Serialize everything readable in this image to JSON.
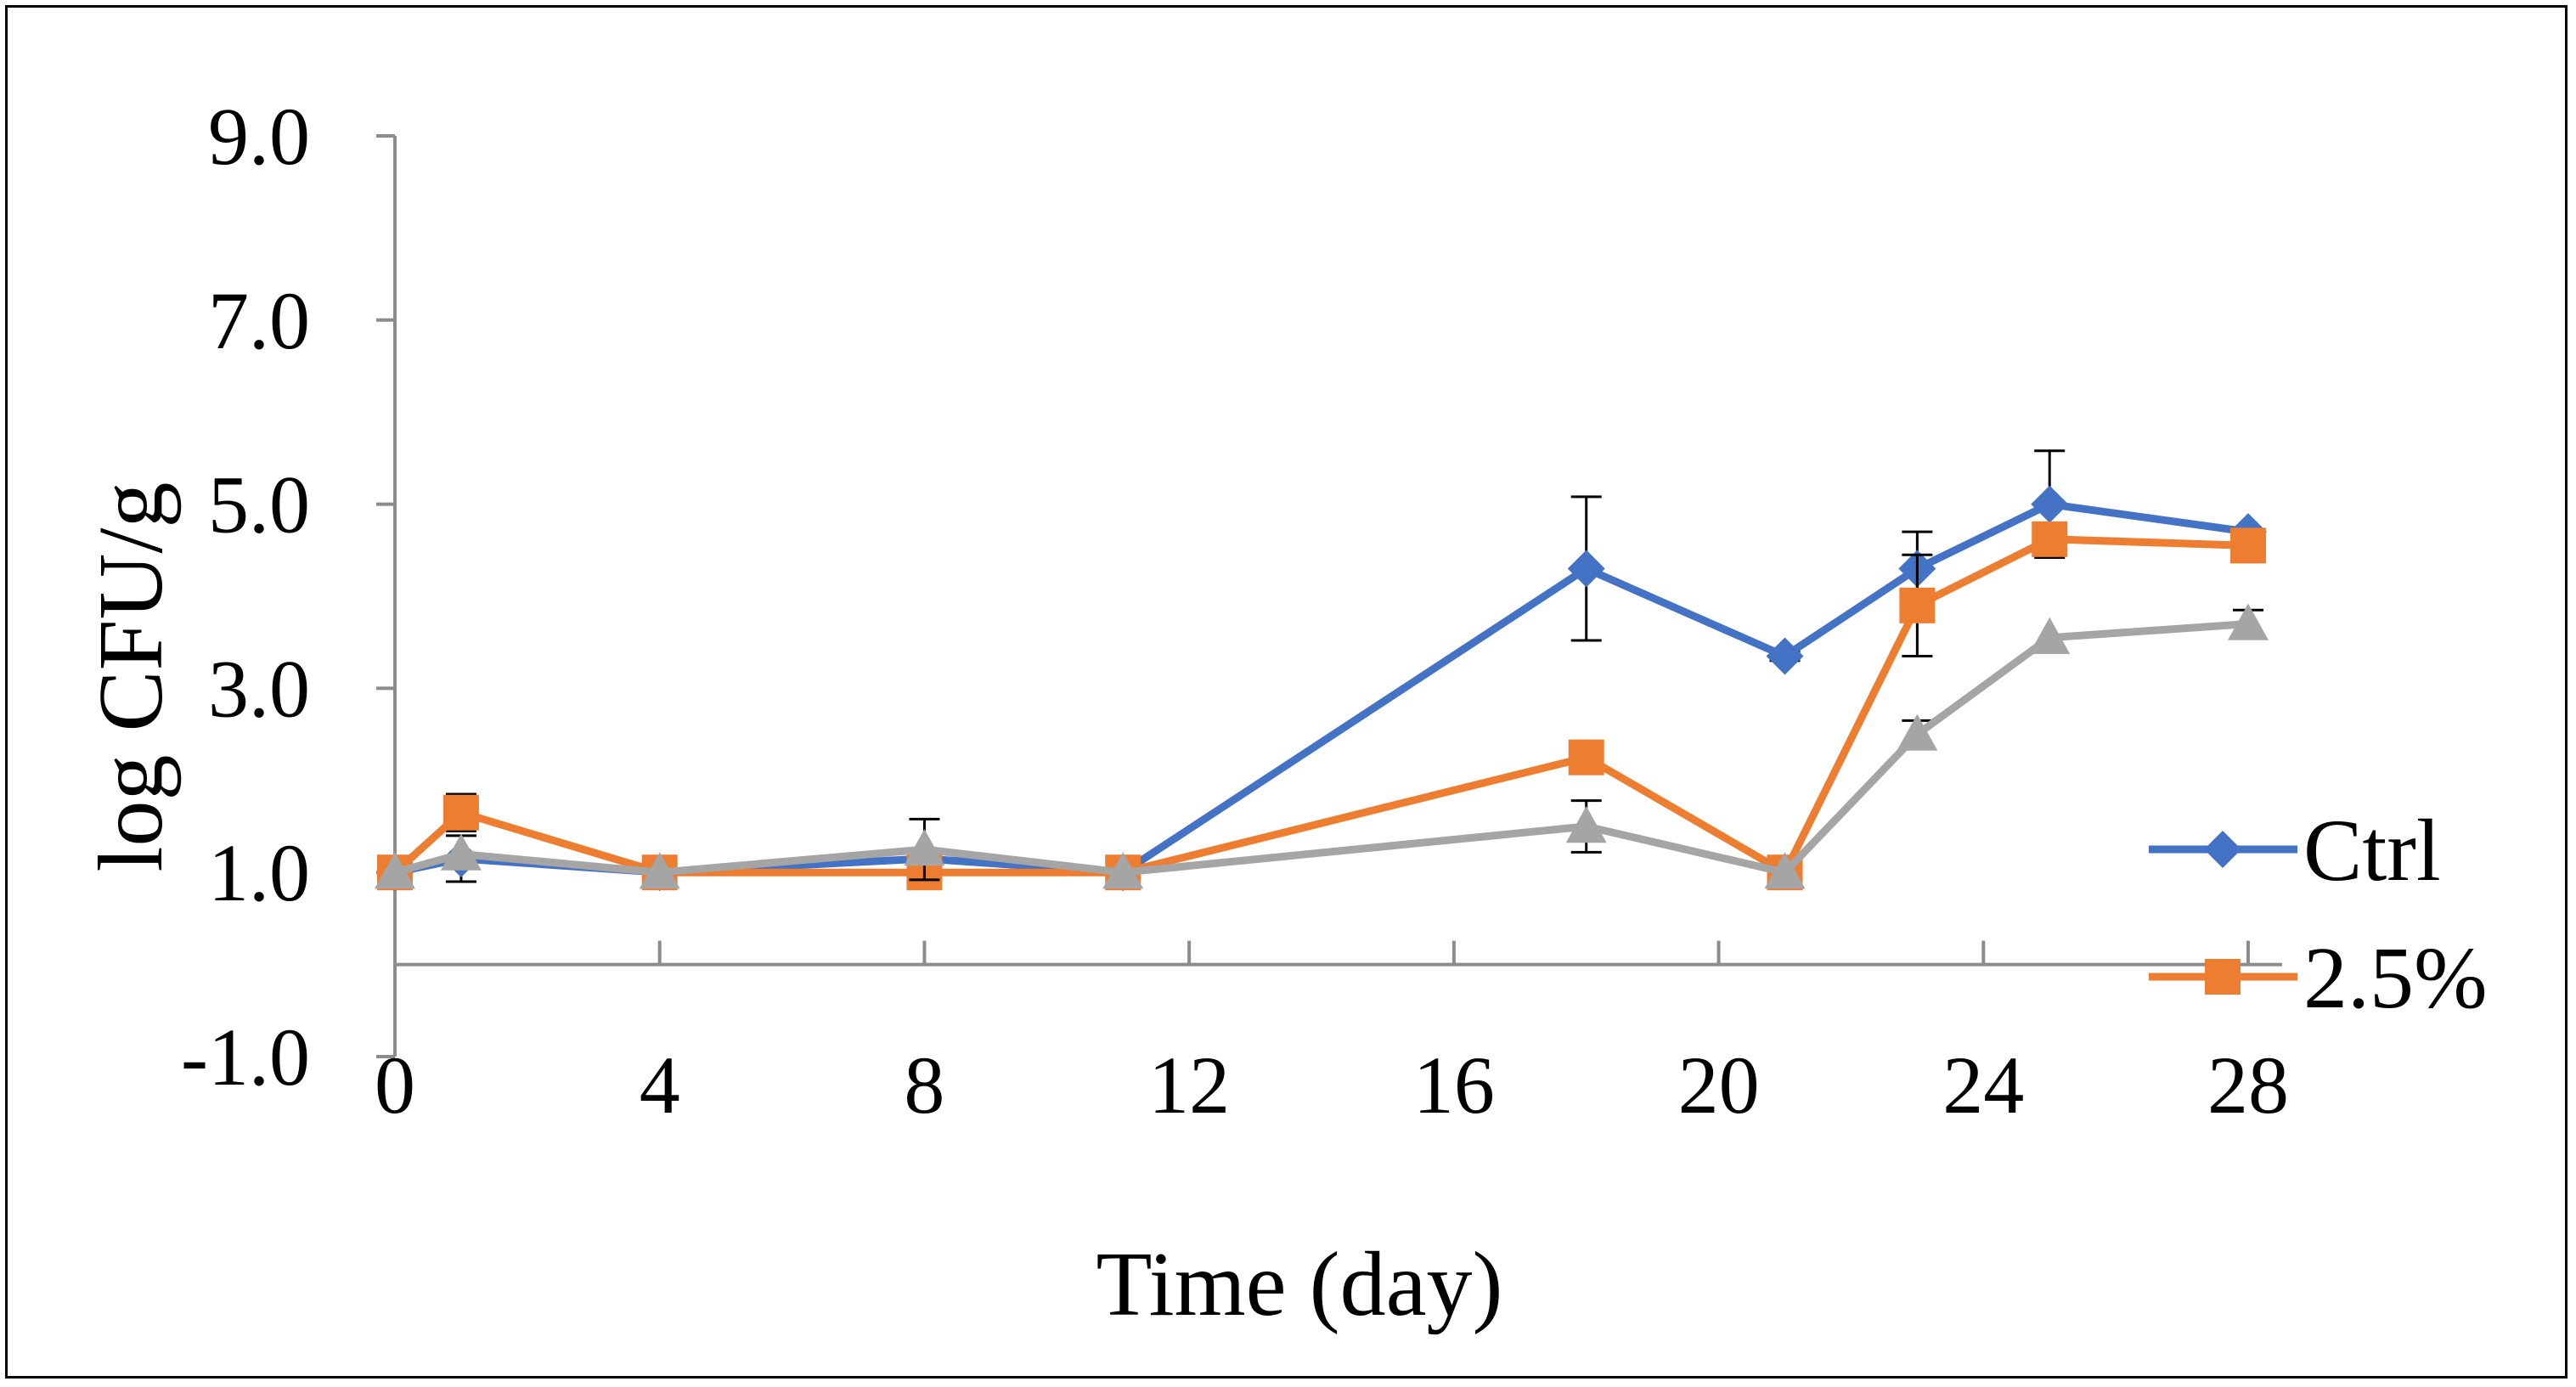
{
  "chart_data": {
    "type": "line",
    "title": "",
    "xlabel": "Time (day)",
    "ylabel": "log CFU/g",
    "xlim": [
      0,
      28
    ],
    "ylim": [
      -1.0,
      9.0
    ],
    "x_ticks": [
      0,
      4,
      8,
      12,
      16,
      20,
      24,
      28
    ],
    "x_tick_labels": [
      "0",
      "4",
      "8",
      "12",
      "16",
      "20",
      "24",
      "28"
    ],
    "y_ticks": [
      -1.0,
      1.0,
      3.0,
      5.0,
      7.0,
      9.0
    ],
    "y_tick_labels": [
      "-1.0",
      "1.0",
      "3.0",
      "5.0",
      "7.0",
      "9.0"
    ],
    "x_axis_at_y": 0,
    "grid": false,
    "legend_position": "right",
    "series": [
      {
        "name": "Ctrl",
        "color": "#4472C4",
        "marker": "diamond",
        "show_in_legend": true,
        "x": [
          0,
          1,
          4,
          8,
          11,
          18,
          21,
          23,
          25,
          28
        ],
        "values": [
          1.0,
          1.15,
          1.0,
          1.15,
          1.0,
          4.3,
          3.35,
          4.3,
          5.0,
          4.7
        ],
        "errors": [
          0.05,
          0.25,
          0.0,
          0.1,
          0.0,
          0.78,
          0.05,
          0.4,
          0.58,
          0.0
        ]
      },
      {
        "name": "2.5%",
        "color": "#ED7D31",
        "marker": "square",
        "show_in_legend": true,
        "x": [
          0,
          1,
          4,
          8,
          11,
          18,
          21,
          23,
          25,
          28
        ],
        "values": [
          1.0,
          1.65,
          1.0,
          1.0,
          1.0,
          2.25,
          1.0,
          3.9,
          4.62,
          4.55
        ],
        "errors": [
          0.0,
          0.2,
          0.0,
          0.0,
          0.0,
          0.0,
          0.0,
          0.55,
          0.0,
          0.0
        ]
      },
      {
        "name": "",
        "color": "#A5A5A5",
        "marker": "triangle",
        "show_in_legend": false,
        "x": [
          0,
          1,
          4,
          8,
          11,
          18,
          21,
          23,
          25,
          28
        ],
        "values": [
          1.0,
          1.2,
          1.0,
          1.25,
          1.0,
          1.5,
          1.0,
          2.5,
          3.55,
          3.7
        ],
        "errors": [
          0.0,
          0.0,
          0.0,
          0.33,
          0.0,
          0.28,
          0.0,
          0.15,
          0.0,
          0.15
        ]
      }
    ]
  }
}
